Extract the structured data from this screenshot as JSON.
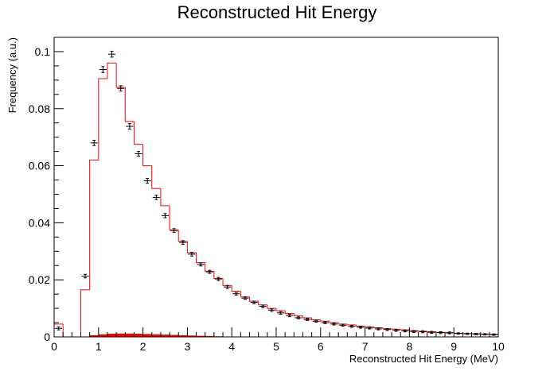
{
  "chart_data": {
    "type": "histogram",
    "title": "Reconstructed Hit Energy",
    "xlabel": "Reconstructed Hit Energy (MeV)",
    "ylabel": "Frequency (a.u.)",
    "xlim": [
      0,
      10
    ],
    "ylim": [
      0,
      0.105
    ],
    "x_ticks": [
      "0",
      "1",
      "2",
      "3",
      "4",
      "5",
      "6",
      "7",
      "8",
      "9",
      "10"
    ],
    "y_ticks": [
      "0",
      "0.02",
      "0.04",
      "0.06",
      "0.08",
      "0.1"
    ],
    "grid": false,
    "colors": {
      "histogram": "#ff0000",
      "data_points": "#000000",
      "frame": "#000000"
    },
    "series": [
      {
        "kind": "step-histogram",
        "bin_edges": [
          0,
          0.2,
          0.4,
          0.6,
          0.8,
          1.0,
          1.2,
          1.4,
          1.6,
          1.8,
          2.0,
          2.2,
          2.4,
          2.6,
          2.8,
          3.0,
          3.2,
          3.4,
          3.6,
          3.8,
          4.0,
          4.2,
          4.4,
          4.6,
          4.8,
          5.0,
          5.2,
          5.4,
          5.6,
          5.8,
          6.0,
          6.2,
          6.4,
          6.6,
          6.8,
          7.0,
          7.2,
          7.4,
          7.6,
          7.8,
          8.0,
          8.2,
          8.4,
          8.6,
          8.8,
          9.0,
          9.2,
          9.4,
          9.6,
          9.8,
          10.0
        ],
        "values": [
          0.0045,
          0,
          0,
          0.0165,
          0.062,
          0.0905,
          0.096,
          0.0875,
          0.0755,
          0.0675,
          0.06,
          0.052,
          0.046,
          0.0375,
          0.0335,
          0.0295,
          0.026,
          0.023,
          0.0205,
          0.018,
          0.016,
          0.014,
          0.0125,
          0.0112,
          0.01,
          0.0092,
          0.0082,
          0.0074,
          0.0067,
          0.006,
          0.0055,
          0.005,
          0.0045,
          0.0042,
          0.0038,
          0.0035,
          0.0032,
          0.0029,
          0.0027,
          0.0025,
          0.0022,
          0.002,
          0.0018,
          0.0016,
          0.0015,
          0.0013,
          0.0012,
          0.0011,
          0.001,
          0.0009
        ]
      },
      {
        "kind": "filled-band",
        "bin_edges": [
          0.8,
          1.0,
          1.2,
          1.4,
          1.6,
          1.8,
          2.0,
          2.2,
          2.4,
          2.6,
          2.8,
          3.0,
          3.2,
          3.4,
          3.6,
          3.8,
          4.0
        ],
        "values": [
          0.0006,
          0.0009,
          0.0011,
          0.0012,
          0.0012,
          0.0011,
          0.001,
          0.0009,
          0.0008,
          0.0007,
          0.0006,
          0.0005,
          0.0004,
          0.0003,
          0.0002,
          0.0001
        ]
      },
      {
        "kind": "points-with-errors",
        "x": [
          0.1,
          0.7,
          0.9,
          1.1,
          1.3,
          1.5,
          1.7,
          1.9,
          2.1,
          2.3,
          2.5,
          2.7,
          2.9,
          3.1,
          3.3,
          3.5,
          3.7,
          3.9,
          4.1,
          4.3,
          4.5,
          4.7,
          4.9,
          5.1,
          5.3,
          5.5,
          5.7,
          5.9,
          6.1,
          6.3,
          6.5,
          6.7,
          6.9,
          7.1,
          7.3,
          7.5,
          7.7,
          7.9,
          8.1,
          8.3,
          8.5,
          8.7,
          8.9,
          9.1,
          9.3,
          9.5,
          9.7,
          9.9
        ],
        "y": [
          0.003,
          0.0213,
          0.068,
          0.0937,
          0.0991,
          0.0871,
          0.0738,
          0.0642,
          0.0547,
          0.0489,
          0.0425,
          0.0373,
          0.0331,
          0.029,
          0.0254,
          0.0228,
          0.0203,
          0.0175,
          0.0151,
          0.0136,
          0.0121,
          0.0107,
          0.0094,
          0.0084,
          0.0075,
          0.0067,
          0.0061,
          0.0055,
          0.005,
          0.0045,
          0.0041,
          0.0037,
          0.0034,
          0.0031,
          0.0028,
          0.0026,
          0.0023,
          0.0021,
          0.0019,
          0.0018,
          0.0016,
          0.0015,
          0.0014,
          0.0012,
          0.0011,
          0.001,
          0.0009,
          0.0008
        ],
        "yerr": [
          0.0004,
          0.0005,
          0.0008,
          0.0009,
          0.0009,
          0.0008,
          0.0008,
          0.0007,
          0.0007,
          0.0006,
          0.0006,
          0.0005,
          0.0005,
          0.0005,
          0.0004,
          0.0004,
          0.0004,
          0.0004,
          0.0003,
          0.0003,
          0.0003,
          0.0003,
          0.0003,
          0.0003,
          0.0003,
          0.0002,
          0.0002,
          0.0002,
          0.0002,
          0.0002,
          0.0002,
          0.0002,
          0.0002,
          0.0002,
          0.0002,
          0.0002,
          0.0002,
          0.0002,
          0.0002,
          0.0002,
          0.0002,
          0.0002,
          0.0002,
          0.0001,
          0.0001,
          0.0001,
          0.0001,
          0.0001
        ]
      }
    ]
  }
}
